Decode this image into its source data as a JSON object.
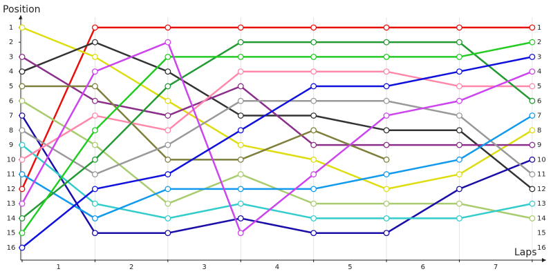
{
  "chart_data": {
    "type": "line",
    "y_label": "Position",
    "x_label": "Laps",
    "x": [
      0,
      1,
      2,
      3,
      4,
      5,
      6,
      7
    ],
    "xlim": [
      0,
      7.2
    ],
    "xticks": [
      {
        "value": 0.5,
        "label": "1"
      },
      {
        "value": 1.5,
        "label": "2"
      },
      {
        "value": 2.5,
        "label": "3"
      },
      {
        "value": 3.5,
        "label": "4"
      },
      {
        "value": 4.5,
        "label": "5"
      },
      {
        "value": 5.5,
        "label": "6"
      },
      {
        "value": 6.5,
        "label": "7"
      }
    ],
    "ylim": [
      16.8,
      0.3
    ],
    "yticks": [
      1,
      2,
      3,
      4,
      5,
      6,
      7,
      8,
      9,
      10,
      11,
      12,
      13,
      14,
      15,
      16
    ],
    "y2lim": [
      16.8,
      0.3
    ],
    "y2ticks": [
      1,
      2,
      3,
      4,
      5,
      6,
      7,
      8,
      9,
      10,
      11,
      12,
      13,
      14,
      15,
      16
    ],
    "grid": "x",
    "series": [
      {
        "color": "#e8100c",
        "values": [
          12,
          1,
          1,
          1,
          1,
          1,
          1,
          1
        ]
      },
      {
        "color": "#dddd11",
        "values": [
          1,
          3,
          6,
          9,
          10,
          12,
          11,
          8
        ]
      },
      {
        "color": "#333333",
        "values": [
          4,
          2,
          4,
          7,
          7,
          8,
          8,
          12
        ]
      },
      {
        "color": "#8b2f8b",
        "values": [
          3,
          6,
          7,
          5,
          9,
          9,
          9,
          9
        ]
      },
      {
        "color": "#7f7f3c",
        "values": [
          5,
          5,
          10,
          10,
          8,
          10,
          null,
          null
        ]
      },
      {
        "color": "#a8cc6e",
        "values": [
          6,
          9,
          13,
          11,
          13,
          13,
          13,
          14
        ]
      },
      {
        "color": "#1a0da8",
        "values": [
          7,
          15,
          15,
          14,
          15,
          15,
          12,
          10
        ]
      },
      {
        "color": "#999999",
        "values": [
          8,
          11,
          9,
          6,
          6,
          6,
          7,
          11
        ]
      },
      {
        "color": "#33cccc",
        "values": [
          9,
          13,
          14,
          13,
          14,
          14,
          14,
          13
        ]
      },
      {
        "color": "#ff88aa",
        "values": [
          10,
          7,
          8,
          4,
          4,
          4,
          5,
          5
        ]
      },
      {
        "color": "#1199ee",
        "values": [
          11,
          14,
          12,
          12,
          12,
          11,
          10,
          7
        ]
      },
      {
        "color": "#229933",
        "values": [
          14,
          10,
          5,
          2,
          2,
          2,
          2,
          6
        ]
      },
      {
        "color": "#22cc22",
        "values": [
          15,
          8,
          3,
          3,
          3,
          3,
          3,
          2
        ]
      },
      {
        "color": "#cc44ee",
        "values": [
          13,
          4,
          2,
          15,
          11,
          7,
          6,
          4
        ]
      },
      {
        "color": "#1111dd",
        "values": [
          16,
          12,
          11,
          8,
          5,
          5,
          4,
          3
        ]
      }
    ]
  }
}
